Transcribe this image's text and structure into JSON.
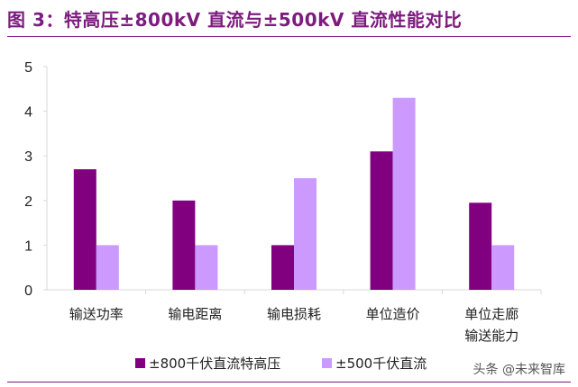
{
  "title": "图 3：特高压±800kV 直流与±500kV 直流性能对比",
  "watermark": "头条 @未来智库",
  "chart_data": {
    "type": "bar",
    "categories": [
      [
        "输送功率"
      ],
      [
        "输电距离"
      ],
      [
        "输电损耗"
      ],
      [
        "单位造价"
      ],
      [
        "单位走廊",
        "输送能力"
      ]
    ],
    "series": [
      {
        "name": "±800千伏直流特高压",
        "color": "#800080",
        "values": [
          2.7,
          2.0,
          1.0,
          3.1,
          1.95
        ]
      },
      {
        "name": "±500千伏直流",
        "color": "#cc99ff",
        "values": [
          1.0,
          1.0,
          2.5,
          4.3,
          1.0
        ]
      }
    ],
    "ylim": [
      0,
      5
    ],
    "yticks": [
      "0",
      "1",
      "2",
      "3",
      "4",
      "5"
    ],
    "grid": false,
    "legend": "bottom"
  }
}
